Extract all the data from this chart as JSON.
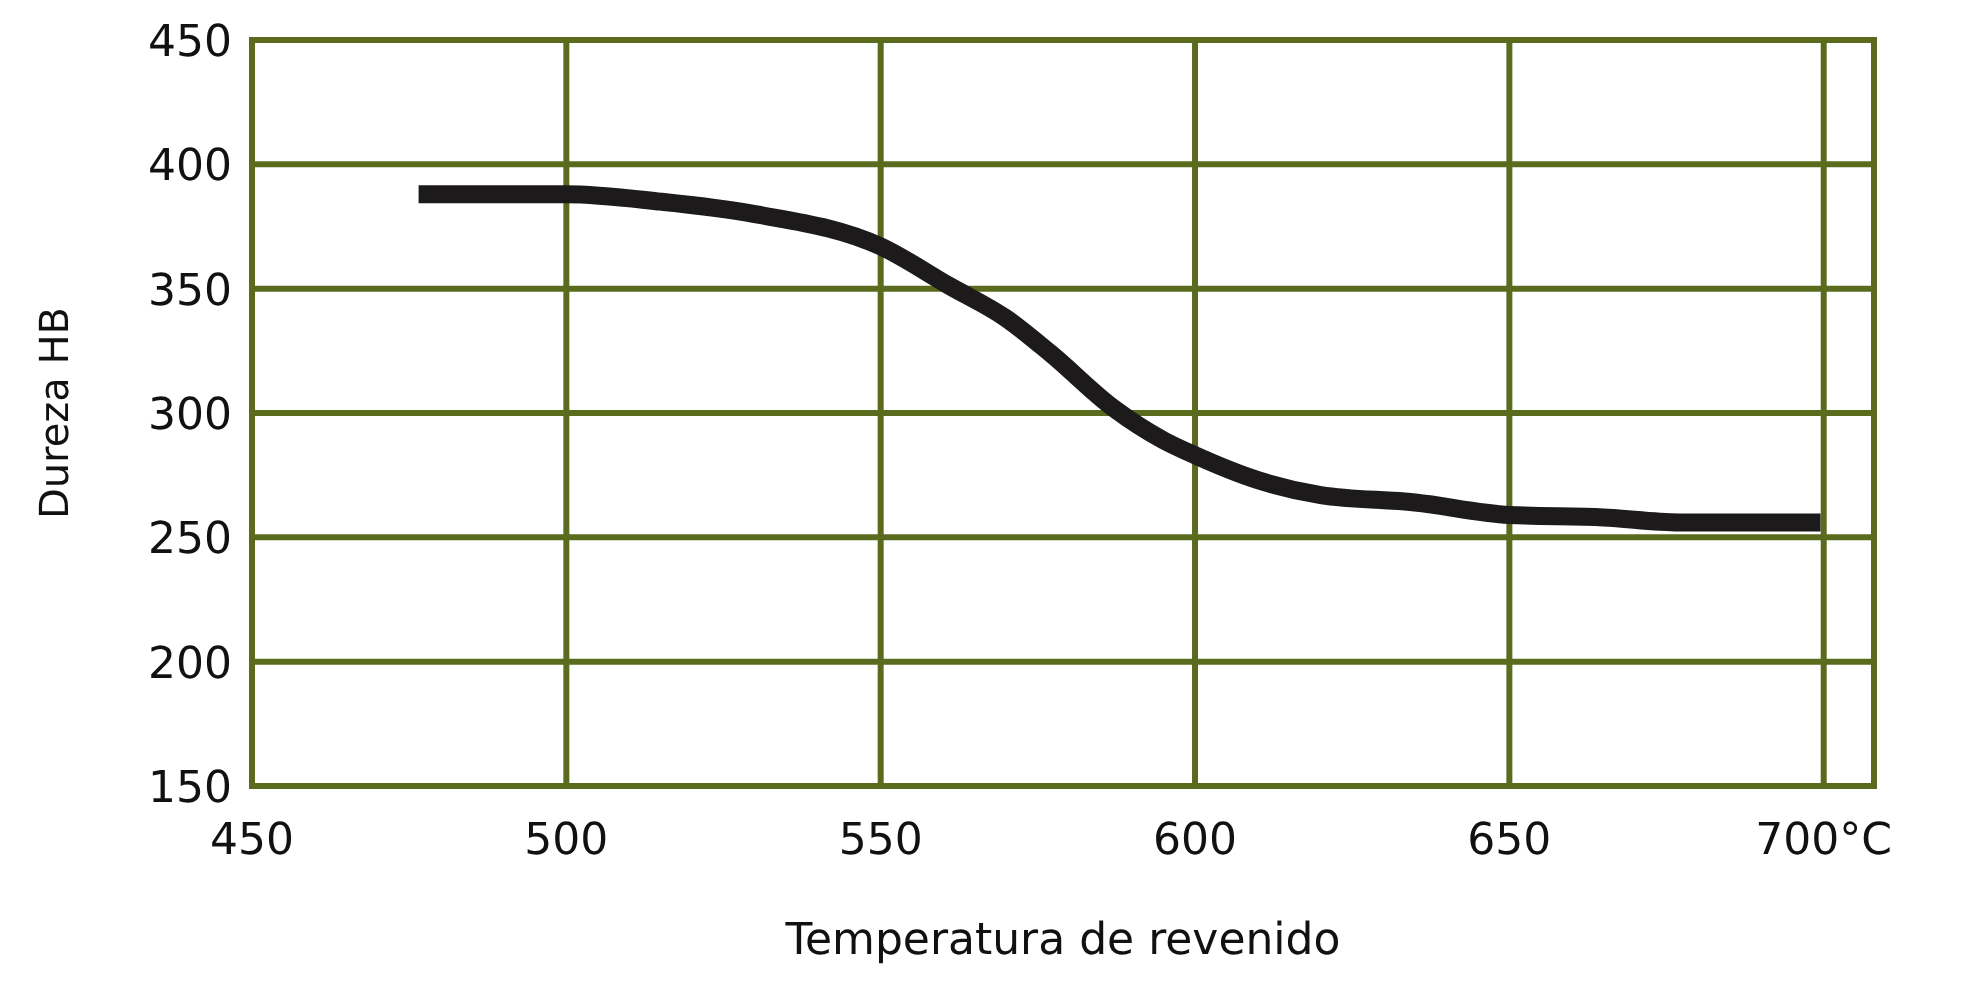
{
  "chart_data": {
    "type": "line",
    "xlabel": "Temperatura de revenido",
    "ylabel": "Dureza HB",
    "x": [
      476.5,
      490,
      500,
      515,
      530,
      550,
      561,
      570,
      577,
      587,
      595,
      600,
      610,
      620,
      635,
      650,
      665,
      677,
      690,
      699.5
    ],
    "series": [
      {
        "color": "#1c1a1a",
        "values": [
          388,
          388,
          388,
          385,
          380,
          367,
          351,
          338,
          324,
          302,
          289,
          283,
          273,
          267,
          264,
          259,
          258,
          256,
          256,
          256
        ]
      }
    ],
    "xlim": [
      450,
      708
    ],
    "ylim": [
      150,
      450
    ],
    "xticks": [
      450,
      500,
      550,
      600,
      650,
      {
        "value": 700,
        "label": "700°C"
      }
    ],
    "yticks": [
      150,
      200,
      250,
      300,
      350,
      400,
      450
    ],
    "grid": true,
    "marker": "none",
    "line_style": "solid"
  }
}
